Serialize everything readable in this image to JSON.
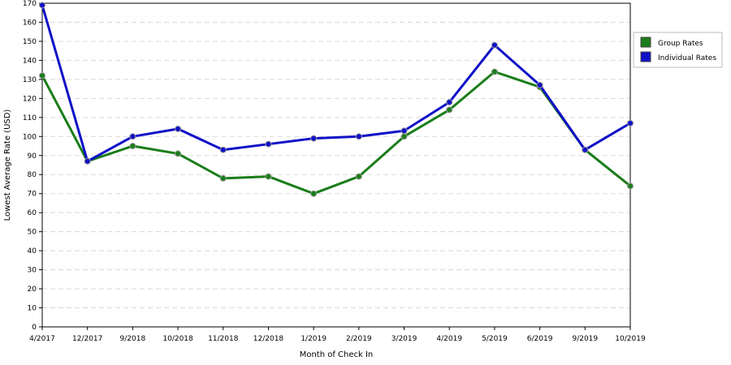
{
  "chart_data": {
    "type": "line",
    "categories": [
      "4/2017",
      "12/2017",
      "9/2018",
      "10/2018",
      "11/2018",
      "12/2018",
      "1/2019",
      "2/2019",
      "3/2019",
      "4/2019",
      "5/2019",
      "6/2019",
      "9/2019",
      "10/2019"
    ],
    "series": [
      {
        "name": "Group Rates",
        "color": "#1a7d1a",
        "values": [
          132,
          87,
          95,
          91,
          78,
          79,
          70,
          79,
          100,
          114,
          134,
          126,
          93,
          74
        ]
      },
      {
        "name": "Individual Rates",
        "color": "#1010c8",
        "values": [
          169,
          87,
          100,
          104,
          93,
          96,
          99,
          100,
          103,
          118,
          148,
          127,
          93,
          107
        ]
      }
    ],
    "xlabel": "Month of Check In",
    "ylabel": "Lowest Average Rate (USD)",
    "ylim": [
      0,
      170
    ],
    "ytick_step": 10,
    "grid": true,
    "legend_position": "top-right"
  }
}
